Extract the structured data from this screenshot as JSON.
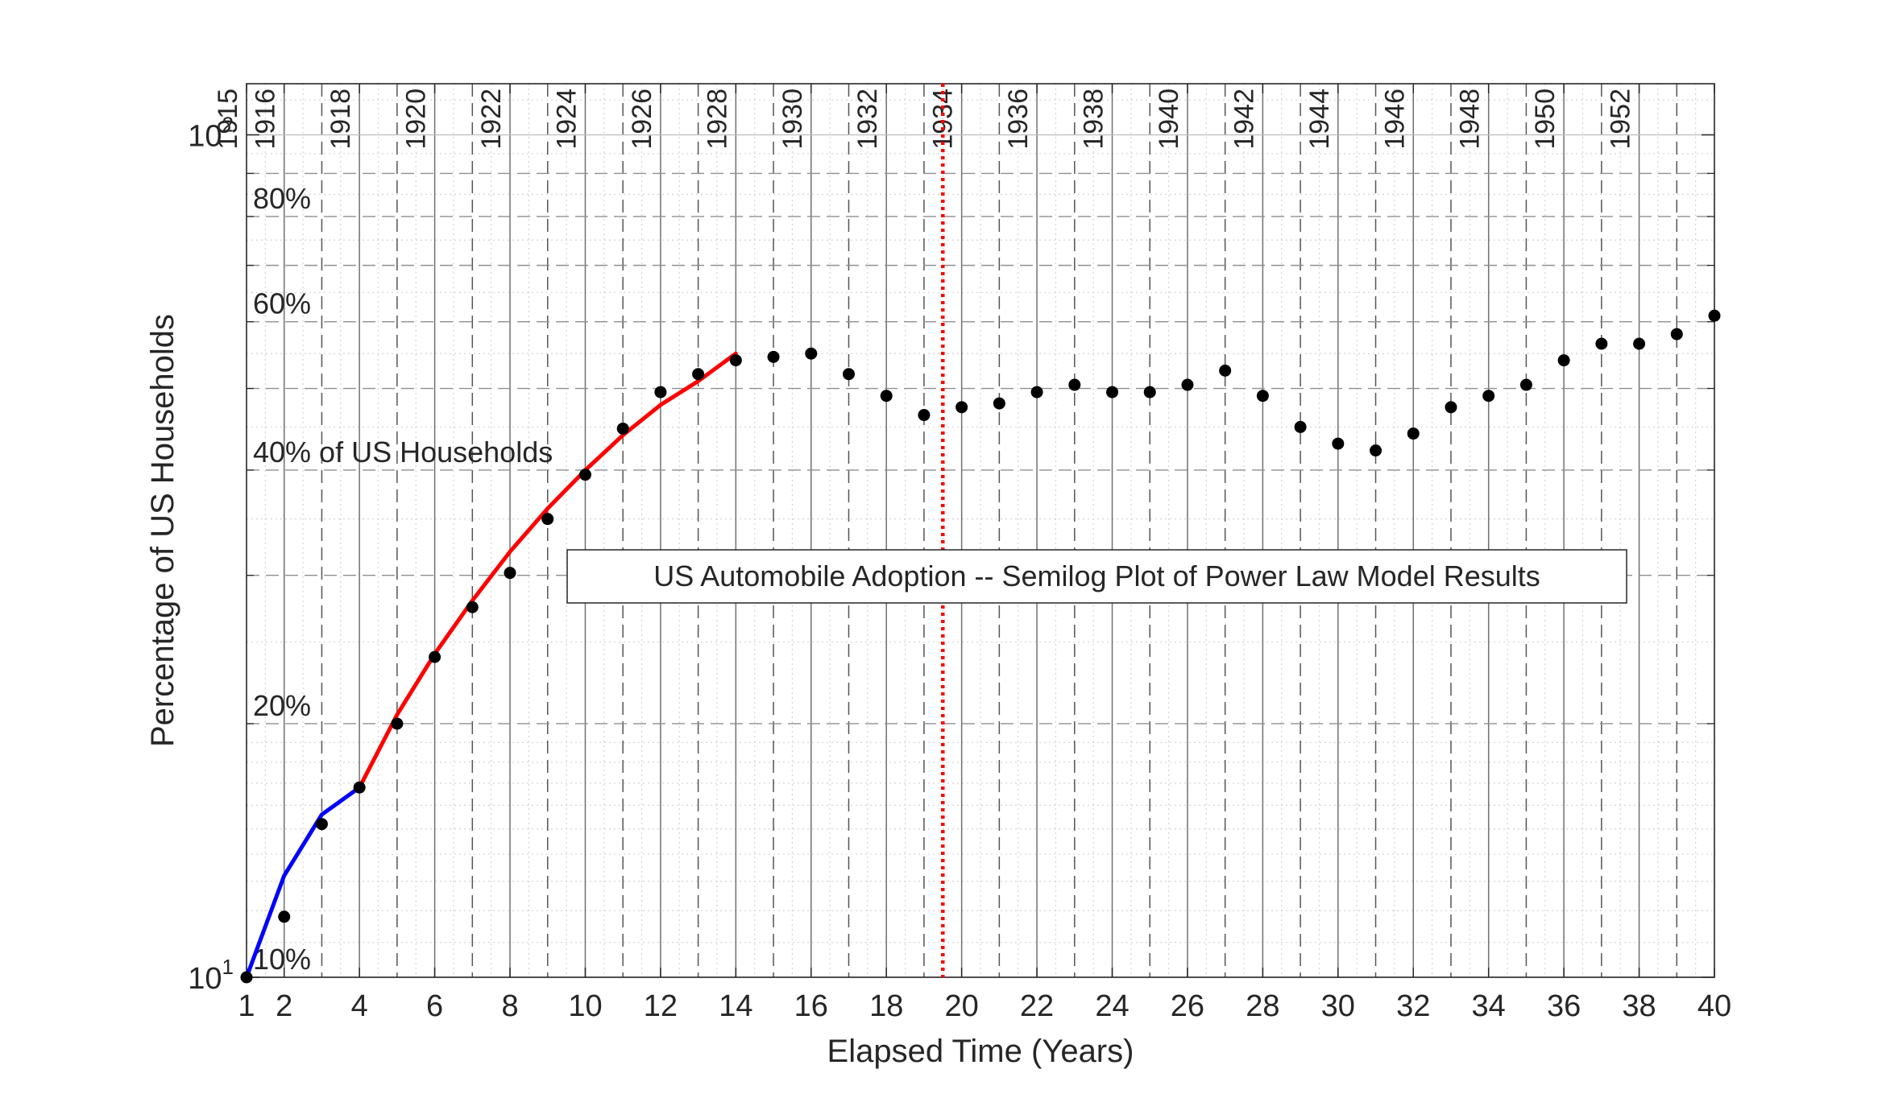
{
  "chart_data": {
    "type": "line",
    "title": "US Automobile Adoption -- Semilog Plot of Power Law Model Results",
    "xlabel": "Elapsed Time (Years)",
    "ylabel": "Percentage of US Households",
    "yscale": "log",
    "xlim": [
      1,
      40
    ],
    "ylim": [
      10,
      115
    ],
    "x_ticks": [
      1,
      2,
      4,
      6,
      8,
      10,
      12,
      14,
      16,
      18,
      20,
      22,
      24,
      26,
      28,
      30,
      32,
      34,
      36,
      38,
      40
    ],
    "y_tick_labels": [
      {
        "value": 10,
        "base": "10",
        "exp": "1"
      },
      {
        "value": 100,
        "base": "10",
        "exp": "2"
      }
    ],
    "percent_lines": [
      {
        "value": 10,
        "label": "10%"
      },
      {
        "value": 20,
        "label": "20%"
      },
      {
        "value": 40,
        "label": "40% of US Households"
      },
      {
        "value": 60,
        "label": "60%"
      },
      {
        "value": 80,
        "label": "80%"
      }
    ],
    "year_labels": [
      {
        "x": 1,
        "label": "1915"
      },
      {
        "x": 2,
        "label": "1916"
      },
      {
        "x": 4,
        "label": "1918"
      },
      {
        "x": 6,
        "label": "1920"
      },
      {
        "x": 8,
        "label": "1922"
      },
      {
        "x": 10,
        "label": "1924"
      },
      {
        "x": 12,
        "label": "1926"
      },
      {
        "x": 14,
        "label": "1928"
      },
      {
        "x": 16,
        "label": "1930"
      },
      {
        "x": 18,
        "label": "1932"
      },
      {
        "x": 20,
        "label": "1934"
      },
      {
        "x": 22,
        "label": "1936"
      },
      {
        "x": 24,
        "label": "1938"
      },
      {
        "x": 26,
        "label": "1940"
      },
      {
        "x": 28,
        "label": "1942"
      },
      {
        "x": 30,
        "label": "1944"
      },
      {
        "x": 32,
        "label": "1946"
      },
      {
        "x": 34,
        "label": "1948"
      },
      {
        "x": 36,
        "label": "1950"
      },
      {
        "x": 38,
        "label": "1952"
      }
    ],
    "vertical_marker": {
      "x": 19.5,
      "color": "#ff0000"
    },
    "grid": true,
    "series": [
      {
        "kind": "scatter",
        "color": "#000000",
        "points": [
          [
            1,
            10.0
          ],
          [
            2,
            11.8
          ],
          [
            3,
            15.2
          ],
          [
            4,
            16.8
          ],
          [
            5,
            20.0
          ],
          [
            6,
            24.0
          ],
          [
            7,
            27.5
          ],
          [
            8,
            30.2
          ],
          [
            9,
            35.0
          ],
          [
            10,
            39.5
          ],
          [
            11,
            44.8
          ],
          [
            12,
            49.5
          ],
          [
            13,
            52.0
          ],
          [
            14,
            54.0
          ],
          [
            15,
            54.5
          ],
          [
            16,
            55.0
          ],
          [
            17,
            52.0
          ],
          [
            18,
            49.0
          ],
          [
            19,
            46.5
          ],
          [
            20,
            47.5
          ],
          [
            21,
            48.0
          ],
          [
            22,
            49.5
          ],
          [
            23,
            50.5
          ],
          [
            24,
            49.5
          ],
          [
            25,
            49.5
          ],
          [
            26,
            50.5
          ],
          [
            27,
            52.5
          ],
          [
            28,
            49.0
          ],
          [
            29,
            45.0
          ],
          [
            30,
            43.0
          ],
          [
            31,
            42.2
          ],
          [
            32,
            44.2
          ],
          [
            33,
            47.5
          ],
          [
            34,
            49.0
          ],
          [
            35,
            50.5
          ],
          [
            36,
            54.0
          ],
          [
            37,
            56.5
          ],
          [
            38,
            56.5
          ],
          [
            39,
            58.0
          ],
          [
            40,
            61.0
          ]
        ]
      },
      {
        "kind": "line",
        "color": "#0000ff",
        "points": [
          [
            1,
            10.0
          ],
          [
            2,
            13.2
          ],
          [
            3,
            15.6
          ],
          [
            4,
            16.8
          ]
        ]
      },
      {
        "kind": "line",
        "color": "#ff0000",
        "points": [
          [
            4,
            16.8
          ],
          [
            5,
            20.5
          ],
          [
            6,
            24.2
          ],
          [
            7,
            28.0
          ],
          [
            8,
            32.0
          ],
          [
            9,
            36.0
          ],
          [
            10,
            40.0
          ],
          [
            11,
            44.0
          ],
          [
            12,
            47.8
          ],
          [
            13,
            51.0
          ],
          [
            14,
            55.0
          ]
        ]
      }
    ]
  }
}
